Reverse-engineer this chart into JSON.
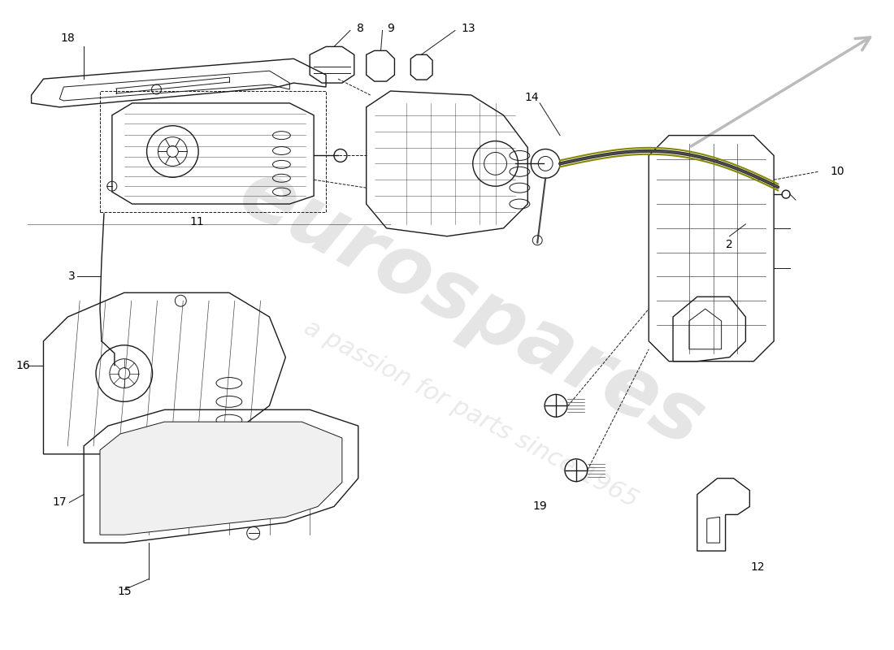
{
  "background_color": "#ffffff",
  "line_color": "#1a1a1a",
  "label_color": "#000000",
  "watermark_text_1": "eurospares",
  "watermark_text_2": "a passion for parts since 1965",
  "watermark_color": "#cccccc",
  "arrow_color": "#bbbbbb",
  "figsize": [
    11.0,
    8.0
  ],
  "dpi": 100,
  "xlim": [
    0,
    11
  ],
  "ylim": [
    0,
    8
  ]
}
